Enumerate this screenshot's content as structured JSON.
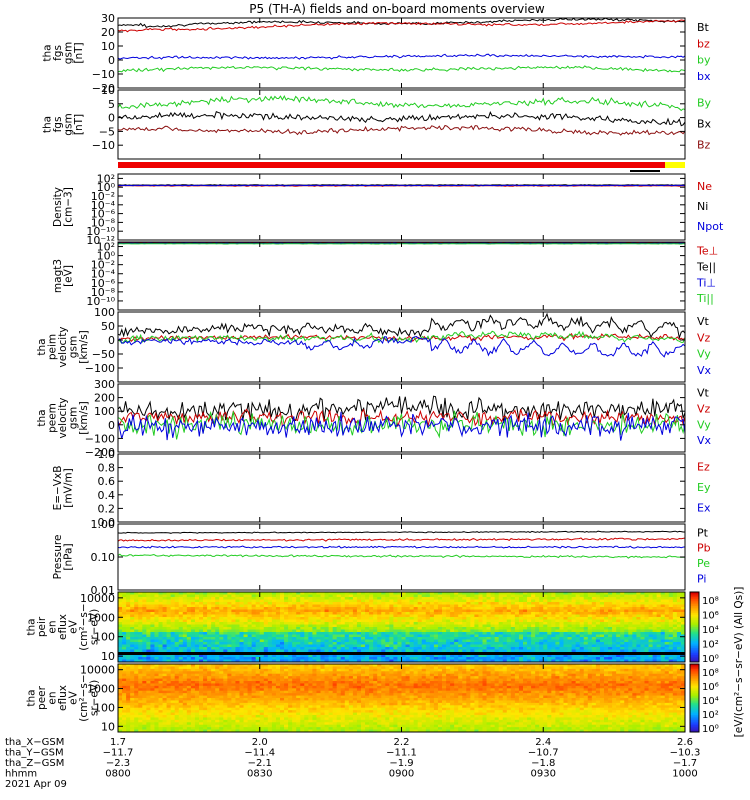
{
  "colors": {
    "black": "#000000",
    "red": "#cc0000",
    "green": "#22cc22",
    "blue": "#0000dd",
    "darkred": "#8b1010",
    "bar_red": "#ee0000",
    "bar_yellow": "#ffff00"
  },
  "title": "P5 (TH-A) fields and on-board moments overview",
  "chart_data": [
    {
      "type": "line",
      "name": "fgs-gsm-1",
      "ylabel": [
        "tha",
        "fgs",
        "gsm",
        "[nT]"
      ],
      "ylim": [
        -20,
        30
      ],
      "yticks": [
        30,
        20,
        10,
        0,
        -10,
        -20
      ],
      "yticklabels": [
        "30",
        "20",
        "10",
        "0",
        "−10",
        "−20"
      ],
      "series": [
        {
          "name": "Bt",
          "color": "black",
          "base": 24,
          "amp": 2.5,
          "noise": 0.6,
          "trend": 4,
          "start": 25
        },
        {
          "name": "bz",
          "color": "red",
          "base": 22,
          "amp": 2.0,
          "noise": 0.6,
          "trend": 5,
          "start": 21
        },
        {
          "name": "by",
          "color": "green",
          "base": -7,
          "amp": 2.0,
          "noise": 0.8,
          "trend": 0
        },
        {
          "name": "bx",
          "color": "blue",
          "base": 1,
          "amp": 1.0,
          "noise": 0.6,
          "trend": 2
        }
      ],
      "legend_order": [
        "Bt",
        "bz",
        "by",
        "bx"
      ],
      "legend_colors": [
        "black",
        "red",
        "green",
        "blue"
      ]
    },
    {
      "type": "line",
      "name": "fgs-gsm-2",
      "ylabel": [
        "tha",
        "fgs",
        "gsm",
        "[nT]"
      ],
      "ylim": [
        -15,
        10
      ],
      "yticks": [
        10,
        5,
        0,
        -5,
        -10
      ],
      "yticklabels": [
        "10",
        "5",
        "0",
        "−5",
        "−10"
      ],
      "series": [
        {
          "name": "By",
          "color": "green",
          "base": 5,
          "amp": 2.5,
          "noise": 0.8,
          "trend": -1
        },
        {
          "name": "Bx",
          "color": "black",
          "base": 0,
          "amp": 1.5,
          "noise": 0.8,
          "trend": -1
        },
        {
          "name": "Bz",
          "color": "darkred",
          "base": -5,
          "amp": 1.5,
          "noise": 0.6,
          "trend": 0
        }
      ],
      "legend_order": [
        "By",
        "Bx",
        "Bz"
      ],
      "legend_colors": [
        "green",
        "black",
        "darkred"
      ]
    },
    {
      "type": "line",
      "name": "density",
      "log": true,
      "ylabel": [
        "Density",
        "[cm−3]"
      ],
      "ylim": [
        1e-12,
        1000
      ],
      "yticks": [
        100,
        1,
        0.01,
        0.0001,
        1e-06,
        1e-08,
        1e-10,
        1e-12
      ],
      "yticklabels": [
        "10²",
        "10⁰",
        "10⁻²",
        "10⁻⁴",
        "10⁻⁶",
        "10⁻⁸",
        "10⁻¹⁰",
        "10⁻¹²"
      ],
      "series": [
        {
          "name": "Ne",
          "color": "red",
          "logval": 0.3,
          "noise": 0.05
        },
        {
          "name": "Ni",
          "color": "black",
          "logval": 0.5,
          "noise": 0.05
        },
        {
          "name": "Npot",
          "color": "blue",
          "logval": 0.4,
          "noise": 0.05
        }
      ],
      "legend_order": [
        "Ne",
        "Ni",
        "Npot"
      ],
      "legend_colors": [
        "red",
        "black",
        "blue"
      ]
    },
    {
      "type": "line",
      "name": "temperature",
      "log": true,
      "ylabel": [
        "magt3",
        "[eV]"
      ],
      "ylim": [
        1e-12,
        1000
      ],
      "yticks": [
        100,
        1,
        0.01,
        0.0001,
        1e-06,
        1e-08,
        1e-10
      ],
      "yticklabels": [
        "10²",
        "10⁰",
        "10⁻²",
        "10⁻⁴",
        "10⁻⁶",
        "10⁻⁸",
        "10⁻¹⁰"
      ],
      "series": [
        {
          "name": "Te⊥",
          "color": "red",
          "logval": 2.85,
          "noise": 0.03
        },
        {
          "name": "Te||",
          "color": "black",
          "logval": 2.95,
          "noise": 0.03
        },
        {
          "name": "Ti⊥",
          "color": "blue",
          "logval": 2.7,
          "noise": 0.03
        },
        {
          "name": "Ti||",
          "color": "green",
          "logval": 2.6,
          "noise": 0.03
        }
      ],
      "legend_order": [
        "Te⊥",
        "Te||",
        "Ti⊥",
        "Ti||"
      ],
      "legend_colors": [
        "red",
        "black",
        "blue",
        "green"
      ]
    },
    {
      "type": "line",
      "name": "peim-velocity",
      "ylabel": [
        "tha",
        "peim",
        "velocity",
        "gsm",
        "[km/s]"
      ],
      "ylim": [
        -150,
        100
      ],
      "yticks": [
        100,
        50,
        0,
        -50,
        -100
      ],
      "yticklabels": [
        "100",
        "50",
        "0",
        "−50",
        "−100"
      ],
      "series": [
        {
          "name": "Vt",
          "color": "black",
          "base": 25,
          "amp": 15,
          "noise": 12,
          "wave": 40
        },
        {
          "name": "Vz",
          "color": "red",
          "base": 5,
          "amp": 5,
          "noise": 6,
          "wave": 5
        },
        {
          "name": "Vy",
          "color": "green",
          "base": 0,
          "amp": 10,
          "noise": 8,
          "wave": 15
        },
        {
          "name": "Vx",
          "color": "blue",
          "base": -5,
          "amp": 10,
          "noise": 8,
          "wave": -45
        }
      ],
      "legend_order": [
        "Vt",
        "Vz",
        "Vy",
        "Vx"
      ],
      "legend_colors": [
        "black",
        "red",
        "green",
        "blue"
      ]
    },
    {
      "type": "line",
      "name": "peem-velocity",
      "ylabel": [
        "tha",
        "peem",
        "velocity",
        "gsm",
        "[km/s]"
      ],
      "ylim": [
        -200,
        300
      ],
      "yticks": [
        300,
        200,
        100,
        0,
        -100,
        -200
      ],
      "yticklabels": [
        "300",
        "200",
        "100",
        "0",
        "−100",
        "−200"
      ],
      "series": [
        {
          "name": "Vt",
          "color": "black",
          "base": 110,
          "amp": 10,
          "noise": 55
        },
        {
          "name": "Vz",
          "color": "red",
          "base": 50,
          "amp": 10,
          "noise": 40
        },
        {
          "name": "Vy",
          "color": "green",
          "base": 0,
          "amp": 10,
          "noise": 55
        },
        {
          "name": "Vx",
          "color": "blue",
          "base": -10,
          "amp": 10,
          "noise": 60
        }
      ],
      "legend_order": [
        "Vt",
        "Vz",
        "Vy",
        "Vx"
      ],
      "legend_colors": [
        "black",
        "red",
        "green",
        "blue"
      ]
    },
    {
      "type": "line",
      "name": "efield",
      "empty": true,
      "ylabel": [
        "E=−VxB",
        "[mV/m]"
      ],
      "ylim": [
        0,
        1
      ],
      "yticks": [
        1.0,
        0.8,
        0.6,
        0.4,
        0.2,
        0.0
      ],
      "yticklabels": [
        "1.0",
        "0.8",
        "0.6",
        "0.4",
        "0.2",
        "0.0"
      ],
      "series": [],
      "legend_order": [
        "Ez",
        "Ey",
        "Ex"
      ],
      "legend_colors": [
        "red",
        "green",
        "blue"
      ]
    },
    {
      "type": "line",
      "name": "pressure",
      "log": true,
      "ylabel": [
        "Pressure",
        "[nPa]"
      ],
      "ylim": [
        0.01,
        1
      ],
      "yticks": [
        1.0,
        0.1,
        0.01
      ],
      "yticklabels": [
        "1.00",
        "0.10",
        "0.01"
      ],
      "series": [
        {
          "name": "Pt",
          "color": "black",
          "logval": -0.27,
          "noise": 0.01,
          "trend": 0.04
        },
        {
          "name": "Pb",
          "color": "red",
          "logval": -0.5,
          "noise": 0.02,
          "trend": 0.05
        },
        {
          "name": "Pe",
          "color": "green",
          "logval": -0.95,
          "noise": 0.02,
          "trend": -0.05
        },
        {
          "name": "Pi",
          "color": "blue",
          "logval": -0.7,
          "noise": 0.02,
          "trend": 0.0
        }
      ],
      "legend_order": [
        "Pt",
        "Pb",
        "Pe",
        "Pi"
      ],
      "legend_colors": [
        "black",
        "red",
        "green",
        "blue"
      ]
    },
    {
      "type": "heatmap",
      "name": "peir-eflux",
      "ylabel": [
        "tha",
        "peir",
        "en",
        "eflux",
        "eV",
        "(cm²−s−",
        "sr−eV)"
      ],
      "ylim": [
        5,
        20000
      ],
      "log": true,
      "yticks": [
        10000,
        1000,
        100,
        10
      ],
      "yticklabels": [
        "10000",
        "1000",
        "100",
        "10"
      ],
      "species": "ion"
    },
    {
      "type": "heatmap",
      "name": "peer-eflux",
      "ylabel": [
        "tha",
        "peer",
        "en",
        "eflux",
        "eV",
        "(cm²−s−",
        "sr−eV)"
      ],
      "ylim": [
        5,
        20000
      ],
      "log": true,
      "yticks": [
        10000,
        1000,
        100,
        10
      ],
      "yticklabels": [
        "10000",
        "1000",
        "100",
        "10"
      ],
      "species": "electron"
    }
  ],
  "colorbar": {
    "label": "[eV/(cm²−s−sr−eV) (All Qs)]",
    "ticks_upper": [
      "10⁸",
      "10⁶",
      "10⁴",
      "10²",
      "10⁰"
    ],
    "ticks_lower": [
      "10⁸",
      "10⁶",
      "10⁴",
      "10²",
      "10⁰"
    ]
  },
  "xaxis": {
    "rows": [
      {
        "label": "tha_X−GSM",
        "values": [
          "1.7",
          "2.0",
          "2.2",
          "2.4",
          "2.6"
        ]
      },
      {
        "label": "tha_Y−GSM",
        "values": [
          "−11.7",
          "−11.4",
          "−11.1",
          "−10.7",
          "−10.3"
        ]
      },
      {
        "label": "tha_Z−GSM",
        "values": [
          "−2.3",
          "−2.1",
          "−1.9",
          "−1.8",
          "−1.7"
        ]
      },
      {
        "label": "hhmm",
        "values": [
          "0800",
          "0830",
          "0900",
          "0930",
          "1000"
        ]
      }
    ],
    "date": "2021 Apr 09",
    "time_range_minutes": [
      0,
      120
    ],
    "tick_minutes": [
      0,
      30,
      60,
      90,
      120
    ]
  }
}
